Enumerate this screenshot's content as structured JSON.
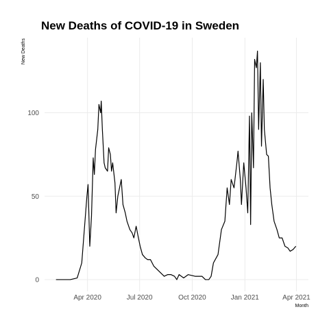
{
  "chart_data": {
    "type": "line",
    "title": "New Deaths of COVID-19 in Sweden",
    "y_label": "New Deaths",
    "x_label": "Month",
    "grid": true,
    "color": "#000000",
    "xlim": [
      -75,
      386
    ],
    "ylim": [
      -7,
      145
    ],
    "yticks": [
      0,
      50,
      100
    ],
    "xticks": [
      {
        "value": 0,
        "label": "Apr 2020"
      },
      {
        "value": 91,
        "label": "Jul 2020"
      },
      {
        "value": 183,
        "label": "Oct 2020"
      },
      {
        "value": 275,
        "label": "Jan 2021"
      },
      {
        "value": 365,
        "label": "Apr 2021"
      }
    ],
    "x": [
      -55,
      -30,
      -18,
      -10,
      -1,
      1,
      4,
      7,
      10,
      12,
      14,
      18,
      20,
      23,
      24,
      26,
      29,
      31,
      35,
      37,
      40,
      42,
      44,
      48,
      50,
      53,
      56,
      59,
      62,
      66,
      69,
      74,
      78,
      81,
      85,
      89,
      92,
      96,
      101,
      105,
      110,
      116,
      122,
      128,
      134,
      140,
      146,
      152,
      156,
      160,
      168,
      176,
      188,
      200,
      206,
      212,
      216,
      220,
      228,
      234,
      240,
      244,
      248,
      251,
      256,
      261,
      263,
      267,
      269,
      273,
      277,
      280,
      283,
      285,
      287,
      290,
      292,
      295,
      297,
      299,
      302,
      304,
      307,
      309,
      313,
      316,
      319,
      322,
      326,
      331,
      335,
      340,
      345,
      350,
      354,
      359,
      364
    ],
    "values": [
      0,
      0,
      1,
      10,
      50,
      57,
      20,
      38,
      73,
      63,
      78,
      90,
      105,
      100,
      107,
      90,
      70,
      67,
      65,
      79,
      75,
      65,
      70,
      58,
      40,
      50,
      55,
      60,
      45,
      40,
      35,
      30,
      28,
      25,
      32,
      25,
      20,
      15,
      13,
      12,
      12,
      8,
      6,
      4,
      2,
      3,
      3,
      2,
      0,
      3,
      1,
      3,
      2,
      2,
      0,
      0,
      2,
      10,
      15,
      30,
      35,
      55,
      45,
      60,
      55,
      70,
      77,
      60,
      45,
      70,
      55,
      40,
      98,
      33,
      100,
      67,
      132,
      127,
      137,
      90,
      130,
      80,
      120,
      90,
      75,
      74,
      55,
      45,
      35,
      30,
      25,
      25,
      20,
      19,
      17,
      18,
      20
    ]
  }
}
